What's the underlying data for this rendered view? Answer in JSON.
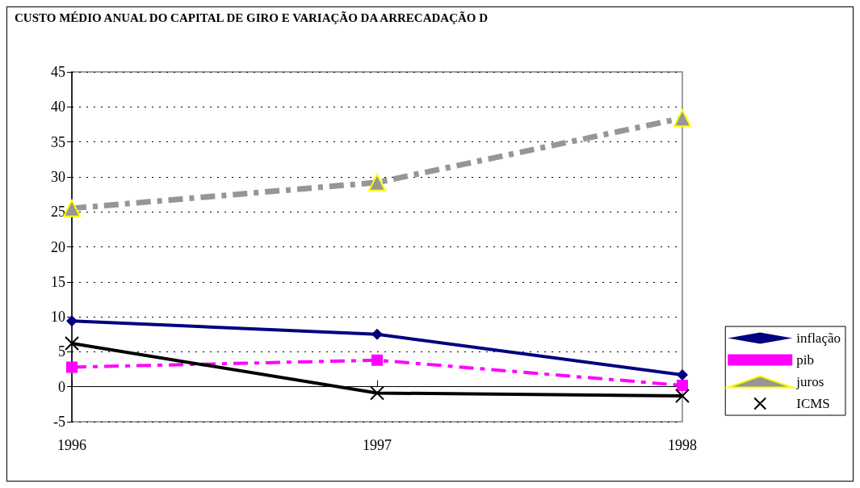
{
  "chart_data": {
    "type": "line",
    "title": "CUSTO MÉDIO ANUAL DO CAPITAL DE GIRO E VARIAÇÃO DA ARRECADAÇÃO D",
    "categories": [
      "1996",
      "1997",
      "1998"
    ],
    "series": [
      {
        "name": "inflação",
        "color": "#000080",
        "values": [
          9.4,
          7.5,
          1.7
        ],
        "marker": "diamond",
        "line_style": "solid"
      },
      {
        "name": "pib",
        "color": "#ff00ff",
        "values": [
          2.8,
          3.8,
          0.2
        ],
        "marker": "square",
        "line_style": "dashed"
      },
      {
        "name": "juros",
        "color": "#969696",
        "values": [
          25.5,
          29.2,
          38.4
        ],
        "marker": "triangle",
        "line_style": "dashed"
      },
      {
        "name": "ICMS",
        "color": "#000000",
        "values": [
          6.2,
          -0.9,
          -1.3
        ],
        "marker": "cross",
        "line_style": "solid"
      }
    ],
    "ylim": [
      -5,
      45
    ],
    "yticks": [
      -5,
      0,
      5,
      10,
      15,
      20,
      25,
      30,
      35,
      40,
      45
    ],
    "grid": "y",
    "legend": "right"
  }
}
